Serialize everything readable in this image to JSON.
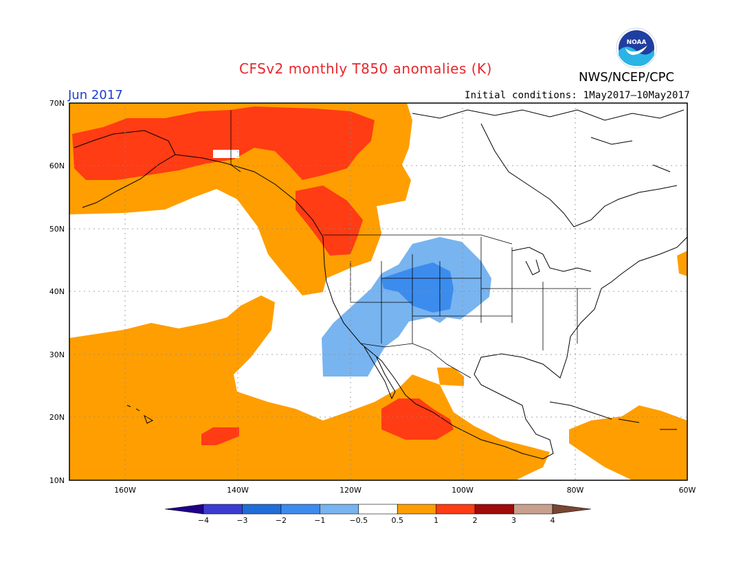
{
  "header": {
    "title": "CFSv2 monthly T850 anomalies (K)",
    "month": "Jun 2017",
    "agency": "NWS/NCEP/CPC",
    "initial_conditions": "Initial conditions: 1May2017–10May2017",
    "logo_text": "NOAA"
  },
  "map": {
    "lon_range": [
      -170,
      -60
    ],
    "lat_range": [
      10,
      70
    ],
    "lat_labels": [
      "70N",
      "60N",
      "50N",
      "40N",
      "30N",
      "20N",
      "10N"
    ],
    "lon_labels": [
      "160W",
      "140W",
      "120W",
      "100W",
      "80W",
      "60W"
    ],
    "grid": true
  },
  "legend": {
    "labels": [
      "−4",
      "−3",
      "−2",
      "−1",
      "−0.5",
      "0.5",
      "1",
      "2",
      "3",
      "4"
    ],
    "colors": [
      "#1f008a",
      "#3c3cd2",
      "#1f6ed8",
      "#3c8cee",
      "#78b4f0",
      "#ffffff",
      "#ff9e00",
      "#ff3c14",
      "#a00a0a",
      "#c8a08c",
      "#784632"
    ]
  },
  "colors": {
    "warm_1": "#ff9e00",
    "warm_2": "#ff3c14",
    "cool_1": "#78b4f0",
    "cool_2": "#3c8cee"
  }
}
